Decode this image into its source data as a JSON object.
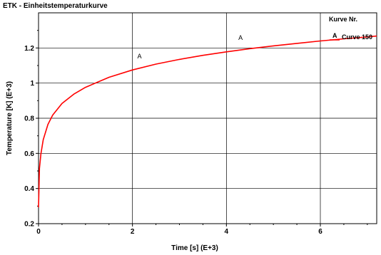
{
  "chart_data": {
    "type": "line",
    "title": "ETK - Einheitstemperaturkurve",
    "xlabel": "Time [s] (E+3)",
    "ylabel": "Temperature [K] (E+3)",
    "xlim": [
      0,
      7.2
    ],
    "ylim": [
      0.2,
      1.4
    ],
    "x_ticks": [
      0,
      2,
      4,
      6
    ],
    "x_tick_labels": [
      "0",
      "2",
      "4",
      "6"
    ],
    "y_ticks": [
      0.2,
      0.4,
      0.6,
      0.8,
      1.0,
      1.2
    ],
    "y_tick_labels": [
      "0.2",
      "0.4",
      "0.6",
      "0.8",
      "1",
      "1.2"
    ],
    "grid": true,
    "legend": {
      "title": "Kurve Nr.",
      "placement": "top-right",
      "entries": [
        {
          "marker": "A",
          "label": "Curve 150"
        }
      ]
    },
    "series": [
      {
        "name": "Curve 150",
        "marker": "A",
        "color": "#ff0000",
        "x": [
          0,
          0.02,
          0.05,
          0.1,
          0.2,
          0.3,
          0.5,
          0.75,
          1.0,
          1.5,
          2.0,
          2.5,
          3.0,
          3.5,
          4.0,
          4.5,
          5.0,
          5.5,
          6.0,
          6.5,
          7.0,
          7.2
        ],
        "y": [
          0.293,
          0.515,
          0.596,
          0.678,
          0.765,
          0.818,
          0.884,
          0.937,
          0.976,
          1.033,
          1.075,
          1.108,
          1.135,
          1.158,
          1.178,
          1.196,
          1.212,
          1.226,
          1.24,
          1.252,
          1.263,
          1.268
        ],
        "marker_points": [
          {
            "x": 2.15,
            "y": 1.14
          },
          {
            "x": 4.3,
            "y": 1.245
          }
        ]
      }
    ]
  }
}
